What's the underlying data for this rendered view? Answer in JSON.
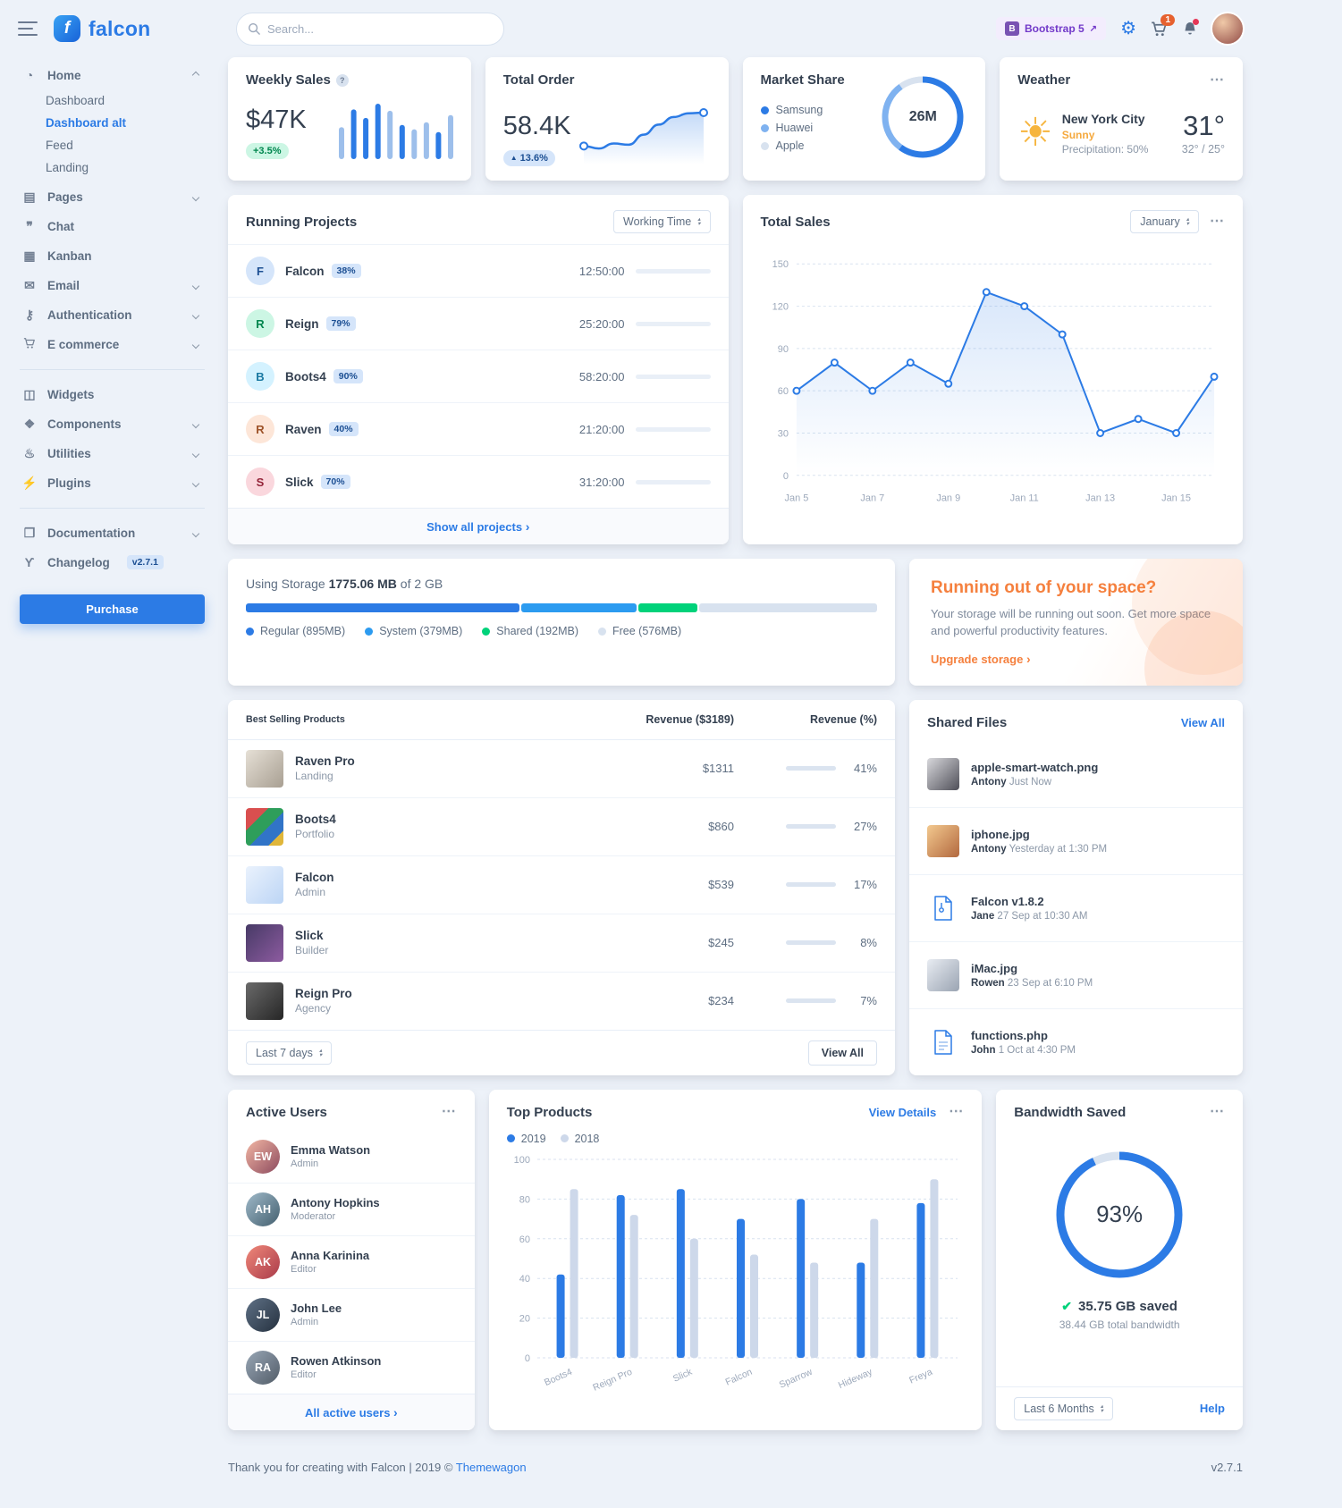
{
  "brand": {
    "name": "falcon"
  },
  "topbar": {
    "search_placeholder": "Search...",
    "bootstrap_badge": "Bootstrap 5",
    "cart_count": "1"
  },
  "sidebar": {
    "home": {
      "label": "Home",
      "children": [
        {
          "label": "Dashboard",
          "active": false
        },
        {
          "label": "Dashboard alt",
          "active": true
        },
        {
          "label": "Feed",
          "active": false
        },
        {
          "label": "Landing",
          "active": false
        }
      ]
    },
    "items": [
      {
        "label": "Pages"
      },
      {
        "label": "Chat"
      },
      {
        "label": "Kanban"
      },
      {
        "label": "Email"
      },
      {
        "label": "Authentication"
      },
      {
        "label": "E commerce"
      },
      {
        "label": "Widgets"
      },
      {
        "label": "Components"
      },
      {
        "label": "Utilities"
      },
      {
        "label": "Plugins"
      },
      {
        "label": "Documentation"
      },
      {
        "label": "Changelog"
      }
    ],
    "changelog_badge": "v2.7.1",
    "purchase_label": "Purchase"
  },
  "weekly_sales": {
    "title": "Weekly Sales",
    "value": "$47K",
    "badge": "+3.5%"
  },
  "total_order": {
    "title": "Total Order",
    "value": "58.4K",
    "badge": "13.6%"
  },
  "market_share": {
    "title": "Market Share",
    "center": "26M",
    "legend": [
      {
        "label": "Samsung",
        "color": "#2c7be5"
      },
      {
        "label": "Huawei",
        "color": "#7fb2f0"
      },
      {
        "label": "Apple",
        "color": "#d8e2ef"
      }
    ]
  },
  "weather": {
    "title": "Weather",
    "city": "New York City",
    "condition": "Sunny",
    "precipitation": "Precipitation: 50%",
    "temp": "31°",
    "range": "32° / 25°"
  },
  "running_projects": {
    "title": "Running Projects",
    "filter": "Working Time",
    "footer": "Show all projects",
    "items": [
      {
        "initial": "F",
        "name": "Falcon",
        "badge": "38%",
        "progress": 38,
        "time": "12:50:00",
        "bg": "#d5e5fa",
        "fg": "#1c4f93"
      },
      {
        "initial": "R",
        "name": "Reign",
        "badge": "79%",
        "progress": 79,
        "time": "25:20:00",
        "bg": "#ccf6e4",
        "fg": "#00864e"
      },
      {
        "initial": "B",
        "name": "Boots4",
        "badge": "90%",
        "progress": 90,
        "time": "58:20:00",
        "bg": "#d4f2ff",
        "fg": "#1978a2"
      },
      {
        "initial": "R",
        "name": "Raven",
        "badge": "40%",
        "progress": 40,
        "time": "21:20:00",
        "bg": "#fde6d8",
        "fg": "#9d5228"
      },
      {
        "initial": "S",
        "name": "Slick",
        "badge": "70%",
        "progress": 70,
        "time": "31:20:00",
        "bg": "#fad7dd",
        "fg": "#932338"
      }
    ]
  },
  "total_sales": {
    "title": "Total Sales",
    "filter": "January"
  },
  "storage": {
    "prefix": "Using Storage",
    "used": "1775.06 MB",
    "suffix": "of 2 GB",
    "segments": [
      {
        "label": "Regular (895MB)",
        "pct": 43.7,
        "color": "#2c7be5"
      },
      {
        "label": "System (379MB)",
        "pct": 18.5,
        "color": "#2c9bf0"
      },
      {
        "label": "Shared (192MB)",
        "pct": 9.4,
        "color": "#00d27a"
      },
      {
        "label": "Free (576MB)",
        "pct": 28.4,
        "color": "#d8e2ef"
      }
    ]
  },
  "space_card": {
    "title": "Running out of your space?",
    "body": "Your storage will be running out soon. Get more space and powerful productivity features.",
    "link": "Upgrade storage"
  },
  "best_selling": {
    "title": "Best Selling Products",
    "col_revenue": "Revenue ($3189)",
    "col_pct": "Revenue (%)",
    "items": [
      {
        "name": "Raven Pro",
        "sub": "Landing",
        "revenue": "$1311",
        "pct": "41%",
        "progress": 41
      },
      {
        "name": "Boots4",
        "sub": "Portfolio",
        "revenue": "$860",
        "pct": "27%",
        "progress": 27
      },
      {
        "name": "Falcon",
        "sub": "Admin",
        "revenue": "$539",
        "pct": "17%",
        "progress": 17
      },
      {
        "name": "Slick",
        "sub": "Builder",
        "revenue": "$245",
        "pct": "8%",
        "progress": 8
      },
      {
        "name": "Reign Pro",
        "sub": "Agency",
        "revenue": "$234",
        "pct": "7%",
        "progress": 7
      }
    ],
    "range": "Last 7 days",
    "view_all": "View All"
  },
  "shared_files": {
    "title": "Shared Files",
    "view_all": "View All",
    "items": [
      {
        "name": "apple-smart-watch.png",
        "by": "Antony",
        "time": "Just Now"
      },
      {
        "name": "iphone.jpg",
        "by": "Antony",
        "time": "Yesterday at 1:30 PM"
      },
      {
        "name": "Falcon v1.8.2",
        "by": "Jane",
        "time": "27 Sep at 10:30 AM"
      },
      {
        "name": "iMac.jpg",
        "by": "Rowen",
        "time": "23 Sep at 6:10 PM"
      },
      {
        "name": "functions.php",
        "by": "John",
        "time": "1 Oct at 4:30 PM"
      }
    ]
  },
  "active_users": {
    "title": "Active Users",
    "footer": "All active users",
    "items": [
      {
        "name": "Emma Watson",
        "role": "Admin",
        "initials": "EW",
        "status": "online"
      },
      {
        "name": "Antony Hopkins",
        "role": "Moderator",
        "initials": "AH",
        "status": "online"
      },
      {
        "name": "Anna Karinina",
        "role": "Editor",
        "initials": "AK",
        "status": "online"
      },
      {
        "name": "John Lee",
        "role": "Admin",
        "initials": "JL",
        "status": "offline"
      },
      {
        "name": "Rowen Atkinson",
        "role": "Editor",
        "initials": "RA",
        "status": "offline"
      }
    ]
  },
  "top_products": {
    "title": "Top Products",
    "view_details": "View Details",
    "legend": [
      {
        "label": "2019",
        "color": "#2c7be5"
      },
      {
        "label": "2018",
        "color": "#cdd8ea"
      }
    ]
  },
  "bandwidth": {
    "title": "Bandwidth Saved",
    "pct": "93%",
    "saved": "35.75 GB saved",
    "total": "38.44 GB total bandwidth",
    "range": "Last 6 Months",
    "help": "Help"
  },
  "page_footer": {
    "thanks": "Thank you for creating with Falcon | 2019 ©",
    "link": "Themewagon",
    "version": "v2.7.1"
  },
  "chart_data": [
    {
      "id": "weekly_sales",
      "type": "bar",
      "title": "Weekly Sales",
      "values": [
        45,
        70,
        58,
        78,
        68,
        48,
        42,
        52,
        38,
        62
      ],
      "colors": [
        "#9dbfeb",
        "#2c7be5",
        "#2c7be5",
        "#2c7be5",
        "#9dbfeb",
        "#2c7be5",
        "#9dbfeb",
        "#9dbfeb",
        "#2c7be5",
        "#9dbfeb"
      ]
    },
    {
      "id": "total_order",
      "type": "line",
      "title": "Total Order",
      "values": [
        18,
        14,
        22,
        20,
        36,
        52,
        64,
        70,
        71
      ],
      "line_color": "#2c7be5"
    },
    {
      "id": "market_share",
      "type": "pie",
      "title": "Market Share",
      "labels": [
        "Samsung",
        "Huawei",
        "Apple"
      ],
      "values": [
        60,
        30,
        10
      ],
      "colors": [
        "#2c7be5",
        "#7fb2f0",
        "#d8e2ef"
      ],
      "center_label": "26M"
    },
    {
      "id": "total_sales",
      "type": "line",
      "title": "Total Sales (January)",
      "x": [
        "Jan 5",
        "Jan 6",
        "Jan 7",
        "Jan 8",
        "Jan 9",
        "Jan 10",
        "Jan 11",
        "Jan 12",
        "Jan 13",
        "Jan 14",
        "Jan 15",
        "Jan 16"
      ],
      "values": [
        60,
        80,
        60,
        80,
        65,
        130,
        120,
        100,
        30,
        40,
        30,
        70
      ],
      "ylim": [
        0,
        150
      ],
      "yticks": [
        0,
        30,
        60,
        90,
        120,
        150
      ],
      "xticklabels": [
        "Jan 5",
        "Jan 7",
        "Jan 9",
        "Jan 11",
        "Jan 13",
        "Jan 15"
      ],
      "line_color": "#2c7be5",
      "grid": true,
      "legend_position": "none"
    },
    {
      "id": "top_products",
      "type": "bar",
      "title": "Top Products",
      "categories": [
        "Boots4",
        "Reign Pro",
        "Slick",
        "Falcon",
        "Sparrow",
        "Hideway",
        "Freya"
      ],
      "series": [
        {
          "name": "2019",
          "color": "#2c7be5",
          "values": [
            42,
            82,
            85,
            70,
            80,
            48,
            78
          ]
        },
        {
          "name": "2018",
          "color": "#cdd8ea",
          "values": [
            85,
            72,
            60,
            52,
            48,
            70,
            90
          ]
        }
      ],
      "ylim": [
        0,
        100
      ],
      "yticks": [
        0,
        20,
        40,
        60,
        80,
        100
      ],
      "grid": true,
      "legend_position": "top-left"
    },
    {
      "id": "bandwidth_saved",
      "type": "pie",
      "title": "Bandwidth Saved",
      "labels": [
        "saved",
        "remaining"
      ],
      "values": [
        93,
        7
      ],
      "colors": [
        "#2c7be5",
        "#d8e2ef"
      ],
      "center_label": "93%"
    }
  ]
}
